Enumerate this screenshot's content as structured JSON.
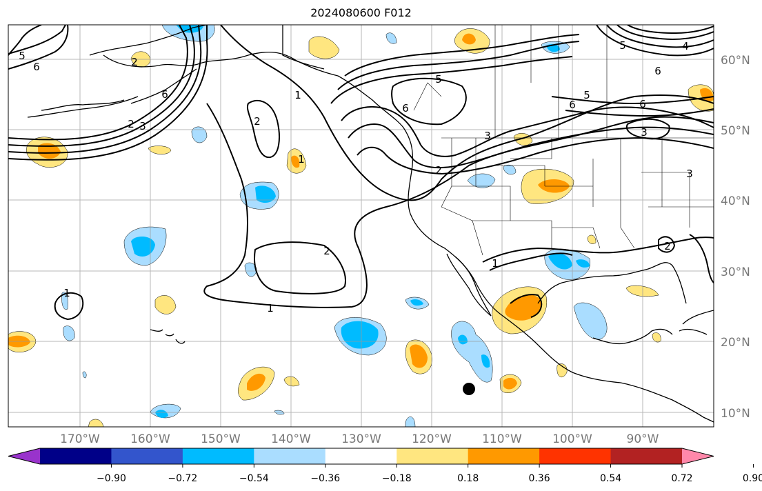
{
  "title": "2024080600 F012",
  "map": {
    "projection": "PlateCarree",
    "lon_range": [
      -180,
      -80
    ],
    "lat_range": [
      8,
      65
    ],
    "gridlines": true,
    "coastlines": true,
    "state_borders": true
  },
  "lon_labels": [
    "170°W",
    "160°W",
    "150°W",
    "140°W",
    "130°W",
    "120°W",
    "110°W",
    "100°W",
    "90°W"
  ],
  "lat_labels": [
    "60°N",
    "50°N",
    "40°N",
    "30°N",
    "20°N",
    "10°N"
  ],
  "contour_labels": [
    "6",
    "5",
    "2",
    "3",
    "6",
    "1",
    "2",
    "1",
    "2",
    "1",
    "5",
    "6",
    "3",
    "2",
    "5",
    "6",
    "3",
    "6",
    "4",
    "5",
    "6",
    "3",
    "2",
    "1",
    "1",
    "2"
  ],
  "colorbar": {
    "ticks": [
      "−0.90",
      "−0.72",
      "−0.54",
      "−0.36",
      "−0.18",
      "0.18",
      "0.36",
      "0.54",
      "0.72",
      "0.90"
    ],
    "colors": [
      "#9933cc",
      "#000088",
      "#3355cc",
      "#00bbff",
      "#aaddff",
      "#ffffff",
      "#ffe680",
      "#ff9900",
      "#ff3300",
      "#b22222",
      "#ff88aa"
    ],
    "extend": "both"
  },
  "marker": {
    "type": "black-dot",
    "lon": -115.5,
    "lat": 13.2
  }
}
